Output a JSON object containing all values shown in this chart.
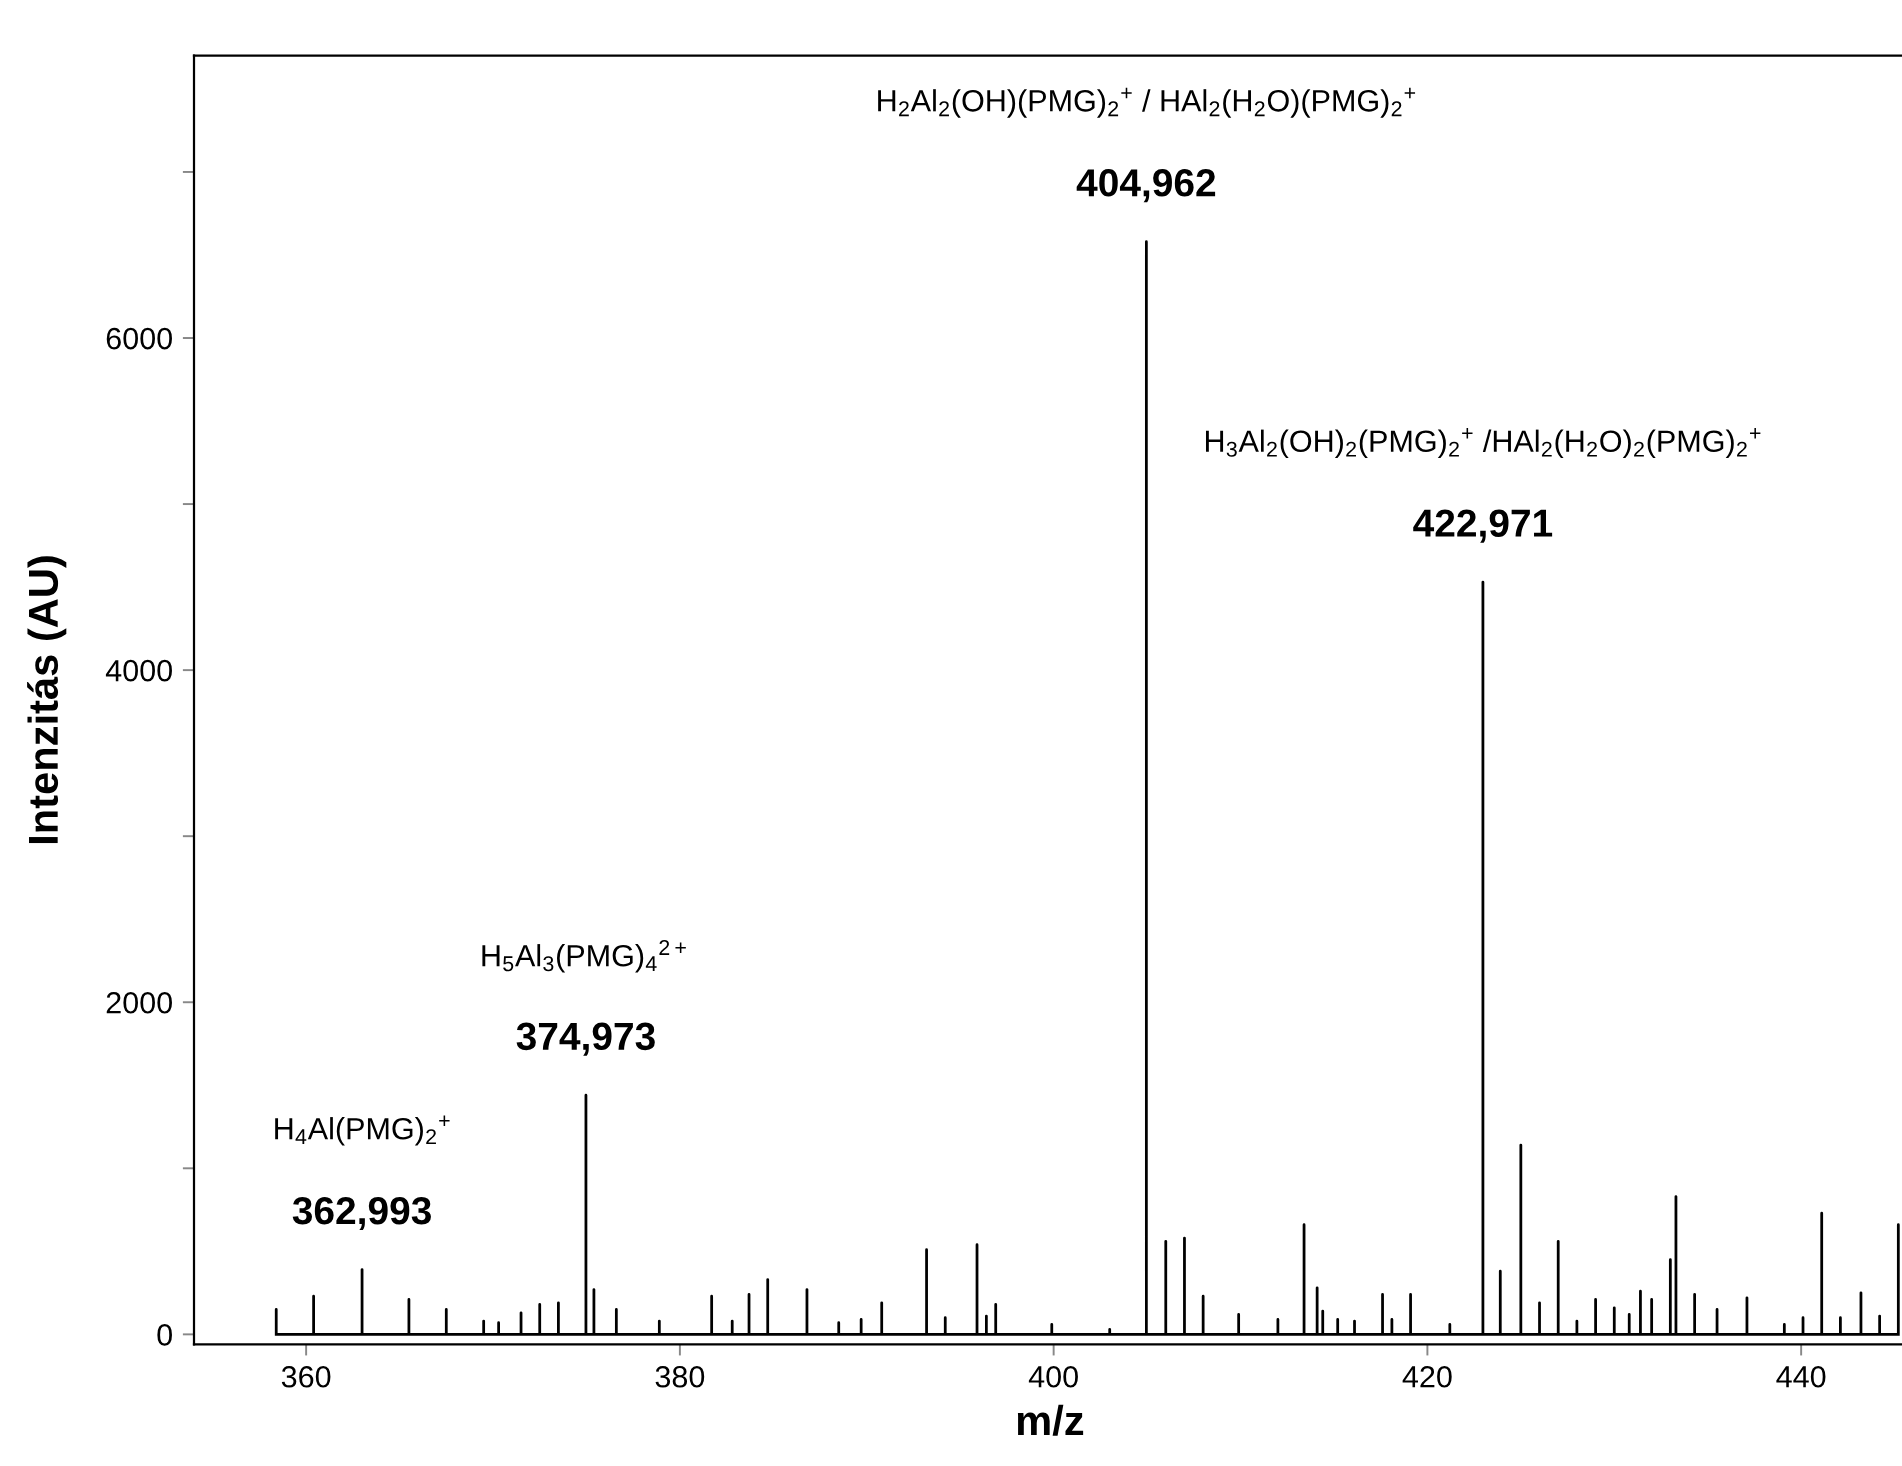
{
  "chart_data": {
    "type": "line",
    "xlabel": "m/z",
    "ylabel": "Intenzitás (AU)",
    "xlim": [
      354,
      445.6
    ],
    "xticks": [
      360,
      380,
      400,
      420,
      440
    ],
    "ylim": [
      -60,
      7700
    ],
    "yticks": [
      0,
      {
        "value": 1000,
        "label": null
      },
      2000,
      {
        "value": 3000,
        "label": null
      },
      4000,
      {
        "value": 5000,
        "label": null
      },
      6000,
      {
        "value": 7000,
        "label": null
      }
    ],
    "grid": false,
    "marker": "none",
    "line_style": "solid",
    "series": [
      {
        "color": "#000000",
        "x": [
          358.4,
          358.4,
          358.4,
          360.4,
          360.4,
          360.4,
          362.993,
          362.993,
          362.993,
          365.5,
          365.5,
          365.5,
          367.5,
          367.5,
          367.5,
          369.5,
          369.5,
          369.5,
          370.3,
          370.3,
          370.3,
          371.5,
          371.5,
          371.5,
          372.5,
          372.5,
          372.5,
          373.5,
          373.5,
          373.5,
          374.973,
          374.973,
          374.973,
          375.4,
          375.4,
          375.4,
          376.6,
          376.6,
          376.6,
          378.9,
          378.9,
          378.9,
          381.7,
          381.7,
          381.7,
          382.8,
          382.8,
          382.8,
          383.7,
          383.7,
          383.7,
          384.7,
          384.7,
          384.7,
          386.8,
          386.8,
          386.8,
          388.5,
          388.5,
          388.5,
          389.7,
          389.7,
          389.7,
          390.8,
          390.8,
          390.8,
          393.2,
          393.2,
          393.2,
          394.2,
          394.2,
          394.2,
          395.9,
          395.9,
          395.9,
          396.4,
          396.4,
          396.4,
          396.9,
          396.9,
          396.9,
          399.9,
          399.9,
          399.9,
          403.0,
          403.0,
          403.0,
          404.962,
          404.962,
          404.962,
          406.0,
          406.0,
          406.0,
          407.0,
          407.0,
          407.0,
          408.0,
          408.0,
          408.0,
          409.9,
          409.9,
          409.9,
          412.0,
          412.0,
          412.0,
          413.4,
          413.4,
          413.4,
          414.1,
          414.1,
          414.1,
          414.4,
          414.4,
          414.4,
          415.2,
          415.2,
          415.2,
          416.1,
          416.1,
          416.1,
          417.6,
          417.6,
          417.6,
          418.1,
          418.1,
          418.1,
          419.1,
          419.1,
          419.1,
          421.2,
          421.2,
          421.2,
          422.971,
          422.971,
          422.971,
          423.9,
          423.9,
          423.9,
          425.0,
          425.0,
          425.0,
          426.0,
          426.0,
          426.0,
          427.0,
          427.0,
          427.0,
          428.0,
          428.0,
          428.0,
          429.0,
          429.0,
          429.0,
          430.0,
          430.0,
          430.0,
          430.8,
          430.8,
          430.8,
          431.4,
          431.4,
          431.4,
          432.0,
          432.0,
          432.0,
          433.0,
          433.0,
          433.0,
          433.3,
          433.3,
          433.3,
          434.3,
          434.3,
          434.3,
          435.5,
          435.5,
          435.5,
          437.1,
          437.1,
          437.1,
          439.1,
          439.1,
          439.1,
          440.1,
          440.1,
          440.1,
          441.1,
          441.1,
          441.1,
          442.1,
          442.1,
          442.1,
          443.2,
          443.2,
          443.2,
          444.2,
          444.2,
          444.2,
          445.2,
          445.2,
          445.2
        ],
        "values": [
          0,
          150,
          0,
          0,
          230,
          0,
          0,
          390,
          0,
          0,
          210,
          0,
          0,
          150,
          0,
          0,
          80,
          0,
          0,
          70,
          0,
          0,
          130,
          0,
          0,
          180,
          0,
          0,
          190,
          0,
          0,
          1440,
          0,
          0,
          270,
          0,
          0,
          150,
          0,
          0,
          80,
          0,
          0,
          230,
          0,
          0,
          80,
          0,
          0,
          240,
          0,
          0,
          330,
          0,
          0,
          270,
          0,
          0,
          70,
          0,
          0,
          90,
          0,
          0,
          190,
          0,
          0,
          510,
          0,
          0,
          100,
          0,
          0,
          540,
          0,
          0,
          110,
          0,
          0,
          180,
          0,
          0,
          60,
          0,
          0,
          30,
          0,
          0,
          6580,
          0,
          0,
          560,
          0,
          0,
          580,
          0,
          0,
          230,
          0,
          0,
          120,
          0,
          0,
          90,
          0,
          0,
          660,
          0,
          0,
          280,
          0,
          0,
          140,
          0,
          0,
          90,
          0,
          0,
          80,
          0,
          0,
          240,
          0,
          0,
          90,
          0,
          0,
          240,
          0,
          0,
          60,
          0,
          0,
          4530,
          0,
          0,
          380,
          0,
          0,
          1140,
          0,
          0,
          190,
          0,
          0,
          560,
          0,
          0,
          80,
          0,
          0,
          210,
          0,
          0,
          160,
          0,
          0,
          120,
          0,
          0,
          260,
          0,
          0,
          210,
          0,
          0,
          450,
          0,
          0,
          830,
          0,
          0,
          240,
          0,
          0,
          150,
          0,
          0,
          220,
          0,
          0,
          60,
          0,
          0,
          100,
          0,
          0,
          730,
          0,
          0,
          100,
          0,
          0,
          250,
          0,
          0,
          110,
          0,
          0,
          660,
          0
        ]
      }
    ],
    "annotations": [
      "H$_{4}$Al(PMG)$_{2}$$^{+}$",
      {
        "text": "362,993",
        "x": 362.993,
        "y": 390
      },
      "H$_{5}$Al$_{3}$(PMG)$_{4}$$^{2+}$",
      {
        "text": "374,973",
        "x": 374.973,
        "y": 1440
      },
      "H$_{2}$Al$_{2}$(OH)(PMG)$_{2}$$^{+}$ / HAl$_{2}$(H$_{2}$O)(PMG)$_{2}$$^{+}$",
      {
        "text": "404,962",
        "x": 404.962,
        "y": 6580
      },
      "H$_{3}$Al$_{2}$(OH)$_{2}$(PMG)$_{2}$$^{+}$ /HAl$_{2}$(H$_{2}$O)$_{2}$(PMG)$_{2}$$^{+}$",
      {
        "text": "422,971",
        "x": 422.971,
        "y": 4530
      }
    ]
  }
}
